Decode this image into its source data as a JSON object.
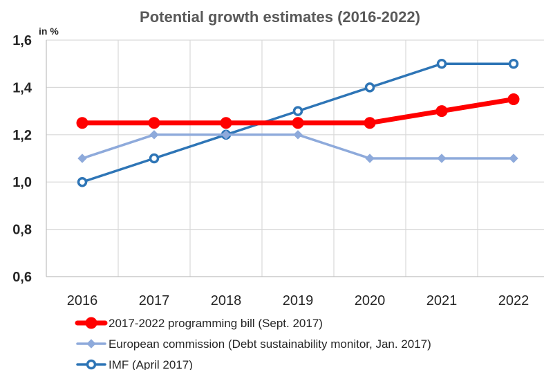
{
  "chart_data": {
    "type": "line",
    "title": "Potential growth estimates (2016-2022)",
    "ylabel": "in %",
    "xlabel": "",
    "categories": [
      "2016",
      "2017",
      "2018",
      "2019",
      "2020",
      "2021",
      "2022"
    ],
    "ylim": [
      0.6,
      1.6
    ],
    "yticks": [
      "0,6",
      "0,8",
      "1,0",
      "1,2",
      "1,4",
      "1,6"
    ],
    "grid": true,
    "legend_position": "bottom",
    "series": [
      {
        "name": "2017-2022 programming bill (Sept. 2017)",
        "values": [
          1.25,
          1.25,
          1.25,
          1.25,
          1.25,
          1.3,
          1.35
        ],
        "color": "#ff0000",
        "marker": "circle"
      },
      {
        "name": "European commission (Debt sustainability monitor, Jan. 2017)",
        "values": [
          1.1,
          1.2,
          1.2,
          1.2,
          1.1,
          1.1,
          1.1
        ],
        "color": "#8eaadb",
        "marker": "diamond"
      },
      {
        "name": "IMF (April 2017)",
        "values": [
          1.0,
          1.1,
          1.2,
          1.3,
          1.4,
          1.5,
          1.5
        ],
        "color": "#2e75b6",
        "marker": "circle-hollow"
      }
    ]
  }
}
